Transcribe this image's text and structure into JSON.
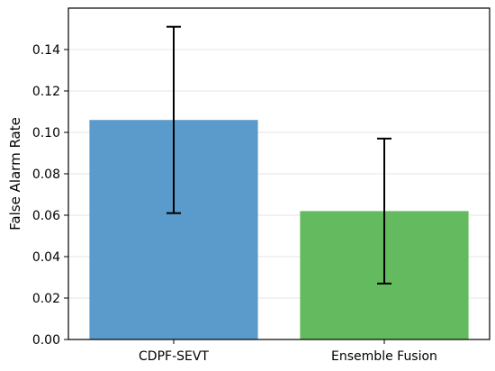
{
  "chart_data": {
    "type": "bar",
    "title": "",
    "xlabel": "",
    "ylabel": "False Alarm Rate",
    "categories": [
      "CDPF-SEVT",
      "Ensemble Fusion"
    ],
    "values": [
      0.106,
      0.062
    ],
    "error_low": [
      0.061,
      0.027
    ],
    "error_high": [
      0.151,
      0.097
    ],
    "colors": [
      "#5b9bcb",
      "#63ba5f"
    ],
    "error_color": "#000000",
    "ylim": [
      0,
      0.16
    ],
    "yticks": [
      0.0,
      0.02,
      0.04,
      0.06,
      0.08,
      0.1,
      0.12,
      0.14
    ],
    "ytick_labels": [
      "0.00",
      "0.02",
      "0.04",
      "0.06",
      "0.08",
      "0.10",
      "0.12",
      "0.14"
    ],
    "grid": "horizontal",
    "legend": "none"
  }
}
